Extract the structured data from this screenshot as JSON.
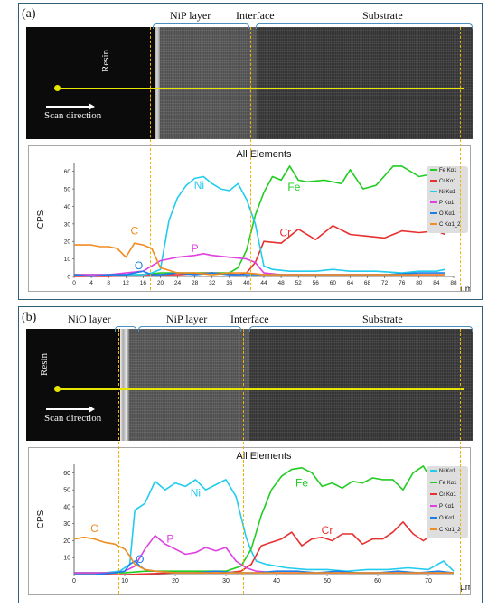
{
  "colors": {
    "Fe": "#22cc22",
    "Cr": "#e83030",
    "Ni": "#22ccee",
    "P": "#e040e0",
    "O": "#1a7fe8",
    "C": "#f08c20",
    "scan_line": "#e6e600",
    "boundary": "#f0b400",
    "frame": "#2e5f77"
  },
  "panels": [
    {
      "label": "(a)",
      "regions": {
        "nip": "NiP layer",
        "interface": "Interface",
        "substrate": "Substrate"
      },
      "resin": "Resin",
      "scan_direction": "Scan direction",
      "legend": [
        "Fe Kα1",
        "Cr Kα1",
        "Ni Kα1",
        "P Kα1",
        "O Kα1",
        "C Kα1_2"
      ],
      "peak_labels": {
        "Ni": "Ni",
        "Fe": "Fe",
        "Cr": "Cr",
        "C": "C",
        "P": "P",
        "O": "O"
      }
    },
    {
      "label": "(b)",
      "regions": {
        "nio": "NiO layer",
        "nip": "NiP layer",
        "interface": "Interface",
        "substrate": "Substrate"
      },
      "resin": "Resin",
      "scan_direction": "Scan direction",
      "legend": [
        "Ni Kα1",
        "Fe Kα1",
        "Cr Kα1",
        "P Kα1",
        "O Kα1",
        "C Kα1_2"
      ],
      "peak_labels": {
        "Ni": "Ni",
        "Fe": "Fe",
        "Cr": "Cr",
        "C": "C",
        "P": "P",
        "O": "O"
      }
    }
  ],
  "chart_data": [
    {
      "type": "line",
      "title": "All Elements",
      "xlabel": "µm",
      "ylabel": "CPS",
      "xlim": [
        0,
        88
      ],
      "ylim": [
        0,
        65
      ],
      "xticks": [
        0,
        4,
        8,
        12,
        16,
        20,
        24,
        28,
        32,
        36,
        40,
        44,
        48,
        52,
        56,
        60,
        64,
        68,
        72,
        76,
        80,
        84,
        88
      ],
      "yticks": [
        0,
        10,
        20,
        30,
        40,
        50,
        60
      ],
      "series": [
        {
          "name": "Fe Kα1",
          "x": [
            0,
            8,
            16,
            20,
            24,
            28,
            32,
            36,
            38,
            40,
            42,
            44,
            46,
            48,
            50,
            52,
            54,
            58,
            62,
            64,
            67,
            70,
            74,
            76,
            80,
            84,
            86
          ],
          "values": [
            1,
            1,
            1,
            2,
            2,
            2,
            2,
            2,
            5,
            15,
            35,
            48,
            57,
            55,
            63,
            55,
            54,
            55,
            53,
            61,
            50,
            52,
            63,
            63,
            57,
            59,
            55
          ]
        },
        {
          "name": "Cr Kα1",
          "x": [
            0,
            8,
            16,
            24,
            32,
            38,
            40,
            42,
            44,
            48,
            52,
            56,
            60,
            64,
            68,
            72,
            76,
            80,
            84,
            86
          ],
          "values": [
            0,
            0,
            1,
            1,
            2,
            1,
            2,
            8,
            20,
            19,
            27,
            21,
            29,
            24,
            23,
            22,
            26,
            25,
            26,
            24
          ]
        },
        {
          "name": "Ni Kα1",
          "x": [
            0,
            8,
            16,
            18,
            20,
            22,
            24,
            26,
            28,
            30,
            32,
            34,
            36,
            38,
            40,
            42,
            44,
            46,
            50,
            56,
            60,
            64,
            70,
            76,
            80,
            84,
            86
          ],
          "values": [
            1,
            1,
            1,
            2,
            4,
            32,
            45,
            52,
            56,
            57,
            53,
            50,
            49,
            53,
            44,
            30,
            6,
            4,
            3,
            3,
            4,
            3,
            3,
            2,
            3,
            3,
            4
          ]
        },
        {
          "name": "P Kα1",
          "x": [
            0,
            8,
            12,
            16,
            20,
            24,
            28,
            30,
            32,
            36,
            40,
            42,
            44,
            48,
            56,
            64,
            72,
            80,
            86
          ],
          "values": [
            1,
            1,
            2,
            3,
            9,
            11,
            12,
            13,
            12,
            11,
            10,
            8,
            2,
            1,
            1,
            1,
            1,
            1,
            1
          ]
        },
        {
          "name": "O Kα1",
          "x": [
            0,
            4,
            8,
            12,
            14,
            16,
            18,
            20,
            24,
            28,
            32,
            36,
            40,
            44,
            48,
            56,
            64,
            72,
            80,
            86
          ],
          "values": [
            1,
            0,
            1,
            1,
            2,
            3,
            1,
            1,
            2,
            1,
            2,
            1,
            1,
            1,
            1,
            1,
            1,
            1,
            2,
            2
          ]
        },
        {
          "name": "C Kα1_2",
          "x": [
            0,
            4,
            6,
            8,
            10,
            12,
            14,
            16,
            18,
            20,
            24,
            28,
            32,
            36,
            40,
            44,
            48,
            56,
            64,
            72,
            80,
            86
          ],
          "values": [
            18,
            18,
            17,
            17,
            16,
            11,
            19,
            18,
            16,
            5,
            2,
            2,
            1,
            2,
            2,
            1,
            1,
            1,
            1,
            1,
            1,
            1
          ]
        }
      ]
    },
    {
      "type": "line",
      "title": "All Elements",
      "xlabel": "µm",
      "ylabel": "CPS",
      "xlim": [
        0,
        75
      ],
      "ylim": [
        0,
        65
      ],
      "xticks": [
        0,
        10,
        20,
        30,
        40,
        50,
        60,
        70
      ],
      "yticks": [
        10,
        20,
        30,
        40,
        50,
        60
      ],
      "series": [
        {
          "name": "Ni Kα1",
          "x": [
            0,
            6,
            9,
            11,
            12,
            14,
            16,
            18,
            20,
            22,
            24,
            26,
            28,
            30,
            32,
            33,
            34,
            35,
            36,
            38,
            42,
            46,
            50,
            54,
            58,
            62,
            66,
            70,
            73,
            75
          ],
          "values": [
            1,
            1,
            2,
            6,
            38,
            42,
            55,
            50,
            54,
            52,
            56,
            50,
            53,
            56,
            46,
            34,
            22,
            14,
            8,
            6,
            4,
            3,
            3,
            2,
            3,
            3,
            4,
            3,
            8,
            2
          ]
        },
        {
          "name": "Fe Kα1",
          "x": [
            0,
            10,
            14,
            18,
            22,
            26,
            30,
            33,
            35,
            37,
            39,
            41,
            43,
            45,
            47,
            49,
            51,
            53,
            55,
            57,
            59,
            61,
            63,
            65,
            67,
            69,
            71,
            73,
            75
          ],
          "values": [
            1,
            1,
            2,
            2,
            2,
            2,
            2,
            5,
            15,
            35,
            50,
            58,
            62,
            63,
            60,
            52,
            54,
            51,
            55,
            54,
            57,
            56,
            56,
            50,
            60,
            64,
            54,
            56,
            54
          ]
        },
        {
          "name": "Cr Kα1",
          "x": [
            0,
            10,
            20,
            30,
            33,
            35,
            37,
            39,
            41,
            43,
            45,
            47,
            49,
            51,
            53,
            55,
            57,
            59,
            61,
            63,
            65,
            67,
            69,
            71,
            73,
            75
          ],
          "values": [
            0,
            0,
            1,
            1,
            2,
            6,
            17,
            19,
            21,
            25,
            17,
            21,
            22,
            20,
            24,
            24,
            18,
            21,
            21,
            25,
            31,
            24,
            20,
            24,
            24,
            23
          ]
        },
        {
          "name": "P Kα1",
          "x": [
            0,
            8,
            10,
            12,
            14,
            16,
            18,
            20,
            22,
            24,
            26,
            28,
            30,
            32,
            34,
            36,
            40,
            50,
            60,
            70,
            75
          ],
          "values": [
            1,
            1,
            2,
            5,
            15,
            23,
            18,
            15,
            12,
            13,
            16,
            14,
            16,
            8,
            4,
            2,
            1,
            1,
            1,
            1,
            1
          ]
        },
        {
          "name": "O Kα1",
          "x": [
            0,
            4,
            8,
            10,
            11,
            12,
            13,
            14,
            16,
            20,
            24,
            28,
            32,
            36,
            40,
            44,
            48,
            52,
            56,
            60,
            64,
            68,
            72,
            75
          ],
          "values": [
            0,
            0,
            1,
            2,
            6,
            8,
            5,
            3,
            2,
            1,
            1,
            2,
            1,
            1,
            2,
            2,
            1,
            2,
            1,
            1,
            2,
            1,
            2,
            1
          ]
        },
        {
          "name": "C Kα1_2",
          "x": [
            0,
            2,
            4,
            6,
            8,
            10,
            11,
            12,
            14,
            16,
            20,
            24,
            28,
            32,
            36,
            40,
            44,
            48,
            52,
            56,
            60,
            64,
            68,
            72,
            75
          ],
          "values": [
            21,
            22,
            21,
            19,
            18,
            15,
            11,
            6,
            3,
            2,
            1,
            1,
            1,
            1,
            1,
            1,
            1,
            1,
            1,
            1,
            1,
            1,
            1,
            1,
            1
          ]
        }
      ]
    }
  ]
}
